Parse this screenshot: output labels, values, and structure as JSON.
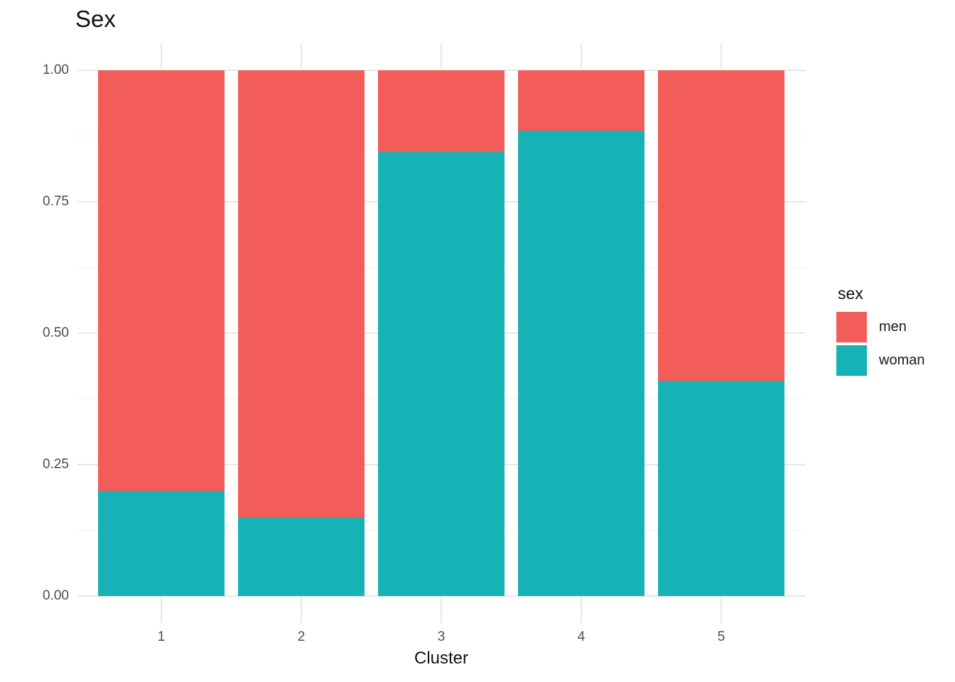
{
  "chart_data": {
    "type": "bar",
    "stacked": true,
    "normalized": true,
    "title": "Sex",
    "xlabel": "Cluster",
    "ylabel": "",
    "categories": [
      "1",
      "2",
      "3",
      "4",
      "5"
    ],
    "series": [
      {
        "name": "woman",
        "color": "#17b2b5",
        "values": [
          0.2,
          0.15,
          0.845,
          0.885,
          0.41
        ]
      },
      {
        "name": "men",
        "color": "#f25d5a",
        "values": [
          0.8,
          0.85,
          0.155,
          0.115,
          0.59
        ]
      }
    ],
    "ylim": [
      0,
      1
    ],
    "y_ticks": [
      {
        "label": "0.00",
        "value": 0.0
      },
      {
        "label": "0.25",
        "value": 0.25
      },
      {
        "label": "0.50",
        "value": 0.5
      },
      {
        "label": "0.75",
        "value": 0.75
      },
      {
        "label": "1.00",
        "value": 1.0
      }
    ],
    "y_minor_values": [
      0.125,
      0.375,
      0.625,
      0.875
    ],
    "grid": true,
    "legend": {
      "title": "sex",
      "position": "right",
      "entries": [
        {
          "label": "men",
          "color": "#f25d5a"
        },
        {
          "label": "woman",
          "color": "#17b2b5"
        }
      ]
    }
  }
}
